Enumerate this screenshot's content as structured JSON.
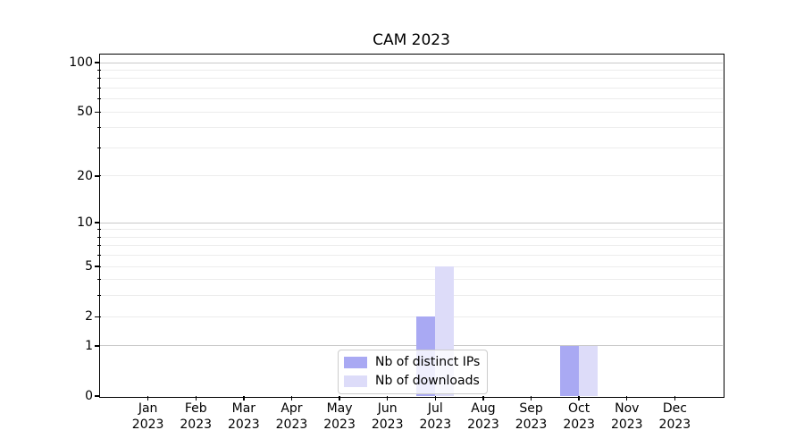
{
  "chart_data": {
    "type": "bar",
    "title": "CAM 2023",
    "xlabel": "",
    "ylabel": "",
    "categories": [
      {
        "month": "Jan",
        "year": "2023"
      },
      {
        "month": "Feb",
        "year": "2023"
      },
      {
        "month": "Mar",
        "year": "2023"
      },
      {
        "month": "Apr",
        "year": "2023"
      },
      {
        "month": "May",
        "year": "2023"
      },
      {
        "month": "Jun",
        "year": "2023"
      },
      {
        "month": "Jul",
        "year": "2023"
      },
      {
        "month": "Aug",
        "year": "2023"
      },
      {
        "month": "Sep",
        "year": "2023"
      },
      {
        "month": "Oct",
        "year": "2023"
      },
      {
        "month": "Nov",
        "year": "2023"
      },
      {
        "month": "Dec",
        "year": "2023"
      }
    ],
    "series": [
      {
        "name": "Nb of distinct IPs",
        "color": "#a9a9f3",
        "values": [
          0,
          0,
          0,
          0,
          0,
          0,
          2,
          0,
          0,
          1,
          0,
          0
        ]
      },
      {
        "name": "Nb of downloads",
        "color": "#dddcf9",
        "values": [
          0,
          0,
          0,
          0,
          0,
          0,
          5,
          0,
          0,
          1,
          0,
          0
        ]
      }
    ],
    "y_axis": {
      "scale": "log1p",
      "tick_values": [
        0,
        1,
        2,
        5,
        10,
        20,
        50,
        100
      ],
      "major_grid_values": [
        1,
        10,
        100
      ],
      "minor_grid_values": [
        2,
        3,
        4,
        5,
        6,
        7,
        8,
        9,
        20,
        30,
        40,
        50,
        60,
        70,
        80,
        90
      ],
      "ylim": [
        0,
        110
      ]
    },
    "legend": {
      "position": "lower center"
    },
    "colors": {
      "major_grid": "#c9c9c9",
      "minor_grid": "#ececec",
      "axis": "#000000",
      "background": "#ffffff"
    },
    "grid": "horizontal-on"
  }
}
